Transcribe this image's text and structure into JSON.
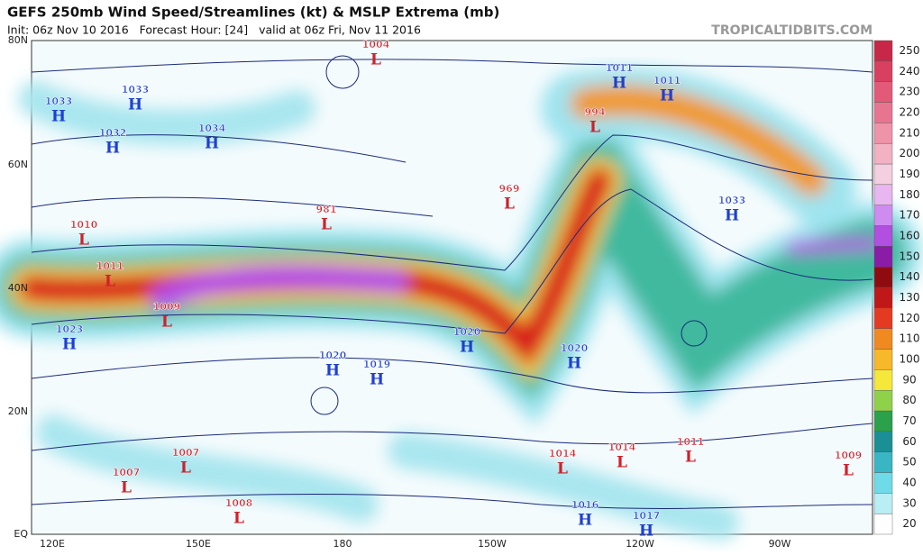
{
  "header": {
    "title": "GEFS 250mb Wind Speed/Streamlines (kt) & MSLP Extrema (mb)",
    "subtitle": "Init: 06z Nov 10 2016   Forecast Hour: [24]   valid at 06z Fri, Nov 11 2016",
    "watermark": "TROPICALTIDBITS.COM"
  },
  "map": {
    "lat_labels": [
      "80N",
      "60N",
      "40N",
      "20N",
      "EQ"
    ],
    "lon_labels": [
      "120E",
      "150E",
      "180",
      "150W",
      "120W",
      "90W"
    ],
    "centers": [
      {
        "value": 1033,
        "symbol": "H"
      },
      {
        "value": 1033,
        "symbol": "H"
      },
      {
        "value": 1032,
        "symbol": "H"
      },
      {
        "value": 1034,
        "symbol": "H"
      },
      {
        "value": 1004,
        "symbol": "L"
      },
      {
        "value": 1010,
        "symbol": "L"
      },
      {
        "value": 1011,
        "symbol": "L"
      },
      {
        "value": 1009,
        "symbol": "L"
      },
      {
        "value": 1023,
        "symbol": "H"
      },
      {
        "value": 981,
        "symbol": "L"
      },
      {
        "value": 969,
        "symbol": "L"
      },
      {
        "value": 994,
        "symbol": "L"
      },
      {
        "value": 1011,
        "symbol": "H"
      },
      {
        "value": 1011,
        "symbol": "H"
      },
      {
        "value": 1033,
        "symbol": "H"
      },
      {
        "value": 1020,
        "symbol": "H"
      },
      {
        "value": 1020,
        "symbol": "H"
      },
      {
        "value": 1020,
        "symbol": "H"
      },
      {
        "value": 1019,
        "symbol": "H"
      },
      {
        "value": 1007,
        "symbol": "L"
      },
      {
        "value": 1007,
        "symbol": "L"
      },
      {
        "value": 1008,
        "symbol": "L"
      },
      {
        "value": 1014,
        "symbol": "L"
      },
      {
        "value": 1014,
        "symbol": "L"
      },
      {
        "value": 1011,
        "symbol": "L"
      },
      {
        "value": 1009,
        "symbol": "L"
      },
      {
        "value": 1016,
        "symbol": "H"
      },
      {
        "value": 1017,
        "symbol": "H"
      }
    ]
  },
  "colorbar": {
    "ticks": [
      20,
      30,
      40,
      50,
      60,
      70,
      80,
      90,
      100,
      110,
      120,
      130,
      140,
      150,
      160,
      170,
      180,
      190,
      200,
      210,
      220,
      230,
      240,
      250
    ]
  }
}
